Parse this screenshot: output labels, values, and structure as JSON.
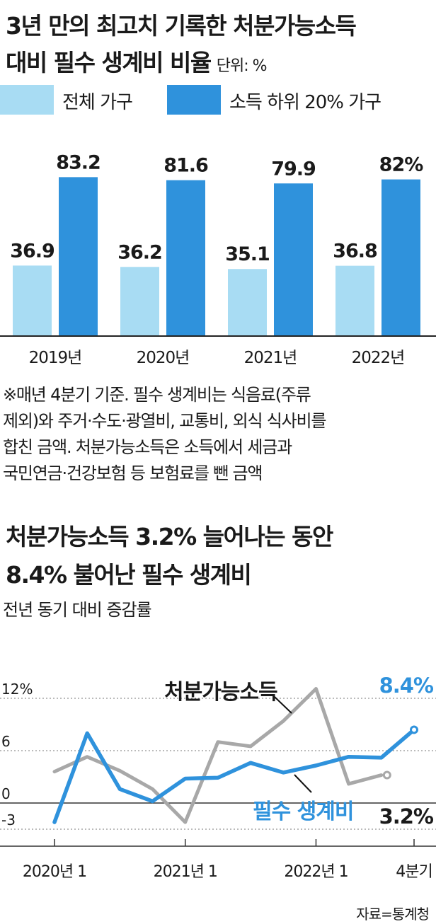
{
  "chart1": {
    "title_line1": "3년 만의 최고치 기록한 처분가능소득",
    "title_line2": "대비 필수 생계비 비율",
    "unit": "단위: %",
    "note_lines": [
      "※매년 4분기 기준. 필수 생계비는 식음료(주류",
      "제외)와 주거·수도·광열비, 교통비, 외식 식사비를",
      "합친 금액. 처분가능소득은 소득에서 세금과",
      "국민연금·건강보험 등 보험료를 뺀 금액"
    ]
  },
  "chart2": {
    "title_line1": "처분가능소득 3.2% 늘어나는 동안",
    "title_line2": "8.4% 불어난 필수 생계비",
    "subtitle": "전년 동기 대비 증감률",
    "label_income": "처분가능소득",
    "label_living": "필수 생계비",
    "end_label_living": "8.4%",
    "end_label_income": "3.2%"
  },
  "source": "자료=통계청",
  "colors": {
    "light": "#a8dcf3",
    "dark": "#2f92dc",
    "gray": "#a8a8a8",
    "text": "#1a1a1a"
  },
  "chart_data": [
    {
      "type": "bar",
      "categories": [
        "2019년",
        "2020년",
        "2021년",
        "2022년"
      ],
      "series": [
        {
          "name": "전체 가구",
          "values": [
            36.9,
            36.2,
            35.1,
            36.8
          ],
          "labels": [
            "36.9",
            "36.2",
            "35.1",
            "36.8"
          ],
          "color": "#a8dcf3"
        },
        {
          "name": "소득 하위 20% 가구",
          "values": [
            83.2,
            81.6,
            79.9,
            82
          ],
          "labels": [
            "83.2",
            "81.6",
            "79.9",
            "82%"
          ],
          "color": "#2f92dc"
        }
      ],
      "ylim": [
        0,
        100
      ],
      "grid": false
    },
    {
      "type": "line",
      "x": [
        "2020Q1",
        "2020Q2",
        "2020Q3",
        "2020Q4",
        "2021Q1",
        "2021Q2",
        "2021Q3",
        "2021Q4",
        "2022Q1",
        "2022Q2",
        "2022Q3",
        "2022Q4"
      ],
      "x_tick_labels": [
        "2020년 1",
        "2021년 1",
        "2022년 1",
        "4분기"
      ],
      "x_tick_index": [
        0,
        4,
        8,
        11
      ],
      "series": [
        {
          "name": "처분가능소득",
          "values": [
            3.6,
            5.3,
            3.7,
            1.6,
            -2.2,
            7.0,
            6.5,
            9.4,
            13.1,
            2.2,
            3.2,
            null
          ],
          "color": "#a8a8a8"
        },
        {
          "name": "필수 생계비",
          "values": [
            -2.2,
            8.0,
            1.6,
            0.2,
            2.8,
            2.9,
            4.6,
            3.5,
            4.3,
            5.3,
            5.2,
            8.4
          ],
          "color": "#2f92dc"
        }
      ],
      "y_ticks": [
        12,
        6,
        0,
        -3
      ],
      "y_tick_labels": [
        "12%",
        "6",
        "0",
        "-3"
      ],
      "ylim": [
        -3,
        13.5
      ],
      "grid": true
    }
  ]
}
